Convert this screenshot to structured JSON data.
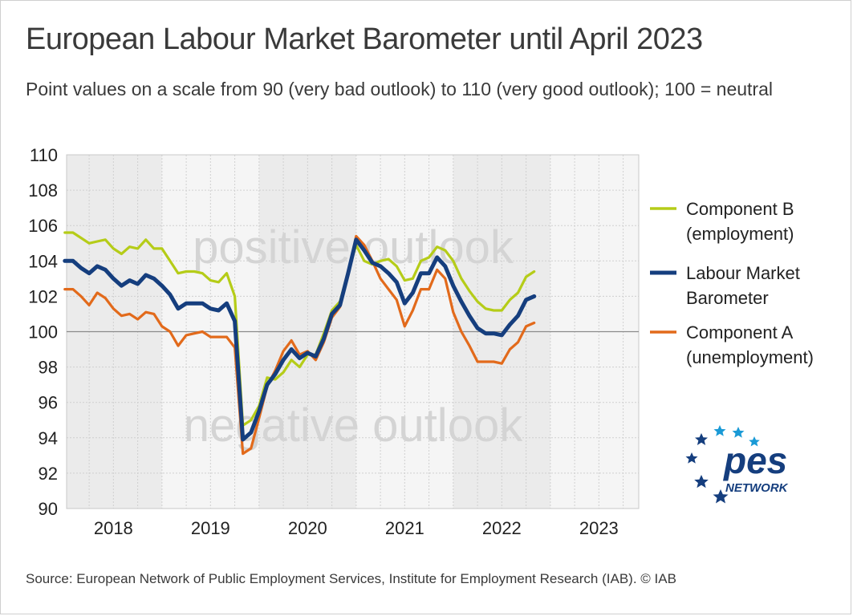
{
  "title": "European Labour Market Barometer until April 2023",
  "subtitle": "Point values on a scale from 90 (very bad outlook) to 110 (very good outlook); 100 = neutral",
  "source": "Source: European Network of Public Employment Services, Institute for Employment Research (IAB).  © IAB",
  "logo": {
    "text": "pes",
    "subtext": "NETWORK"
  },
  "colors": {
    "component_b": "#b5cc18",
    "barometer": "#153e7e",
    "component_a": "#e26a1b",
    "accent_star": "#1a9ad6"
  },
  "chart_data": {
    "type": "line",
    "title": "European Labour Market Barometer until April 2023",
    "xlabel": "",
    "ylabel": "",
    "ylim": [
      90,
      110
    ],
    "yticks": [
      90,
      92,
      94,
      96,
      98,
      100,
      102,
      104,
      106,
      108,
      110
    ],
    "x_year_labels": [
      "2018",
      "2019",
      "2020",
      "2021",
      "2022",
      "2023"
    ],
    "x_start": "2018-01",
    "grid": true,
    "reference_line": 100,
    "annotations": [
      "positive outlook",
      "negative outlook"
    ],
    "legend_position": "right",
    "series": [
      {
        "name": "Component B (employment)",
        "color": "#b5cc18",
        "values": [
          105.6,
          105.6,
          105.3,
          105.0,
          105.1,
          105.2,
          104.7,
          104.4,
          104.8,
          104.7,
          105.2,
          104.7,
          104.7,
          104.0,
          103.3,
          103.4,
          103.4,
          103.3,
          102.9,
          102.8,
          103.3,
          102.0,
          94.7,
          95.0,
          95.8,
          97.4,
          97.3,
          97.7,
          98.4,
          98.0,
          98.7,
          98.7,
          99.9,
          101.2,
          101.7,
          103.4,
          104.9,
          104.0,
          103.8,
          104.0,
          104.1,
          103.7,
          102.9,
          103.0,
          104.0,
          104.2,
          104.8,
          104.6,
          104.0,
          103.0,
          102.3,
          101.7,
          101.3,
          101.2,
          101.2,
          101.8,
          102.2,
          103.1,
          103.4
        ]
      },
      {
        "name": "Labour Market Barometer",
        "color": "#153e7e",
        "values": [
          104.0,
          104.0,
          103.6,
          103.3,
          103.7,
          103.5,
          103.0,
          102.6,
          102.9,
          102.7,
          103.2,
          103.0,
          102.6,
          102.1,
          101.3,
          101.6,
          101.6,
          101.6,
          101.3,
          101.2,
          101.6,
          100.6,
          93.9,
          94.3,
          95.5,
          97.0,
          97.6,
          98.4,
          99.0,
          98.5,
          98.8,
          98.6,
          99.6,
          101.0,
          101.5,
          103.3,
          105.2,
          104.6,
          103.9,
          103.7,
          103.3,
          102.8,
          101.6,
          102.2,
          103.3,
          103.3,
          104.2,
          103.7,
          102.6,
          101.7,
          100.9,
          100.2,
          99.9,
          99.9,
          99.8,
          100.4,
          100.9,
          101.8,
          102.0
        ]
      },
      {
        "name": "Component A (unemployment)",
        "color": "#e26a1b",
        "values": [
          102.4,
          102.4,
          102.0,
          101.5,
          102.2,
          101.9,
          101.3,
          100.9,
          101.0,
          100.7,
          101.1,
          101.0,
          100.3,
          100.0,
          99.2,
          99.8,
          99.9,
          100.0,
          99.7,
          99.7,
          99.7,
          99.1,
          93.1,
          93.4,
          95.1,
          96.9,
          97.8,
          98.9,
          99.5,
          98.7,
          98.9,
          98.4,
          99.4,
          100.8,
          101.4,
          103.2,
          105.4,
          104.9,
          104.0,
          103.0,
          102.4,
          101.8,
          100.3,
          101.2,
          102.4,
          102.4,
          103.5,
          103.0,
          101.1,
          100.0,
          99.2,
          98.3,
          98.3,
          98.3,
          98.2,
          99.0,
          99.4,
          100.3,
          100.5
        ]
      }
    ]
  }
}
